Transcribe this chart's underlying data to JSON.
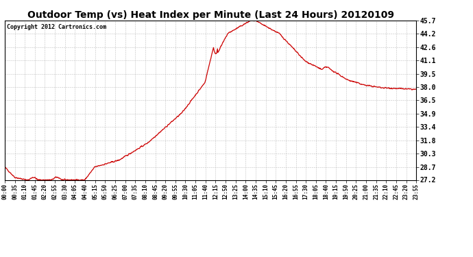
{
  "title": "Outdoor Temp (vs) Heat Index per Minute (Last 24 Hours) 20120109",
  "copyright_text": "Copyright 2012 Cartronics.com",
  "line_color": "#cc0000",
  "background_color": "#ffffff",
  "grid_color": "#b0b0b0",
  "yticks": [
    27.2,
    28.7,
    30.3,
    31.8,
    33.4,
    34.9,
    36.5,
    38.0,
    39.5,
    41.1,
    42.6,
    44.2,
    45.7
  ],
  "ylim": [
    27.2,
    45.7
  ],
  "xtick_labels": [
    "00:00",
    "00:35",
    "01:10",
    "01:45",
    "02:20",
    "02:55",
    "03:30",
    "04:05",
    "04:40",
    "05:15",
    "05:50",
    "06:25",
    "07:00",
    "07:35",
    "08:10",
    "08:45",
    "09:20",
    "09:55",
    "10:30",
    "11:05",
    "11:40",
    "12:15",
    "12:50",
    "13:25",
    "14:00",
    "14:35",
    "15:10",
    "15:45",
    "16:20",
    "16:55",
    "17:30",
    "18:05",
    "18:40",
    "19:15",
    "19:50",
    "20:25",
    "21:00",
    "21:35",
    "22:10",
    "22:45",
    "23:20",
    "23:55"
  ]
}
